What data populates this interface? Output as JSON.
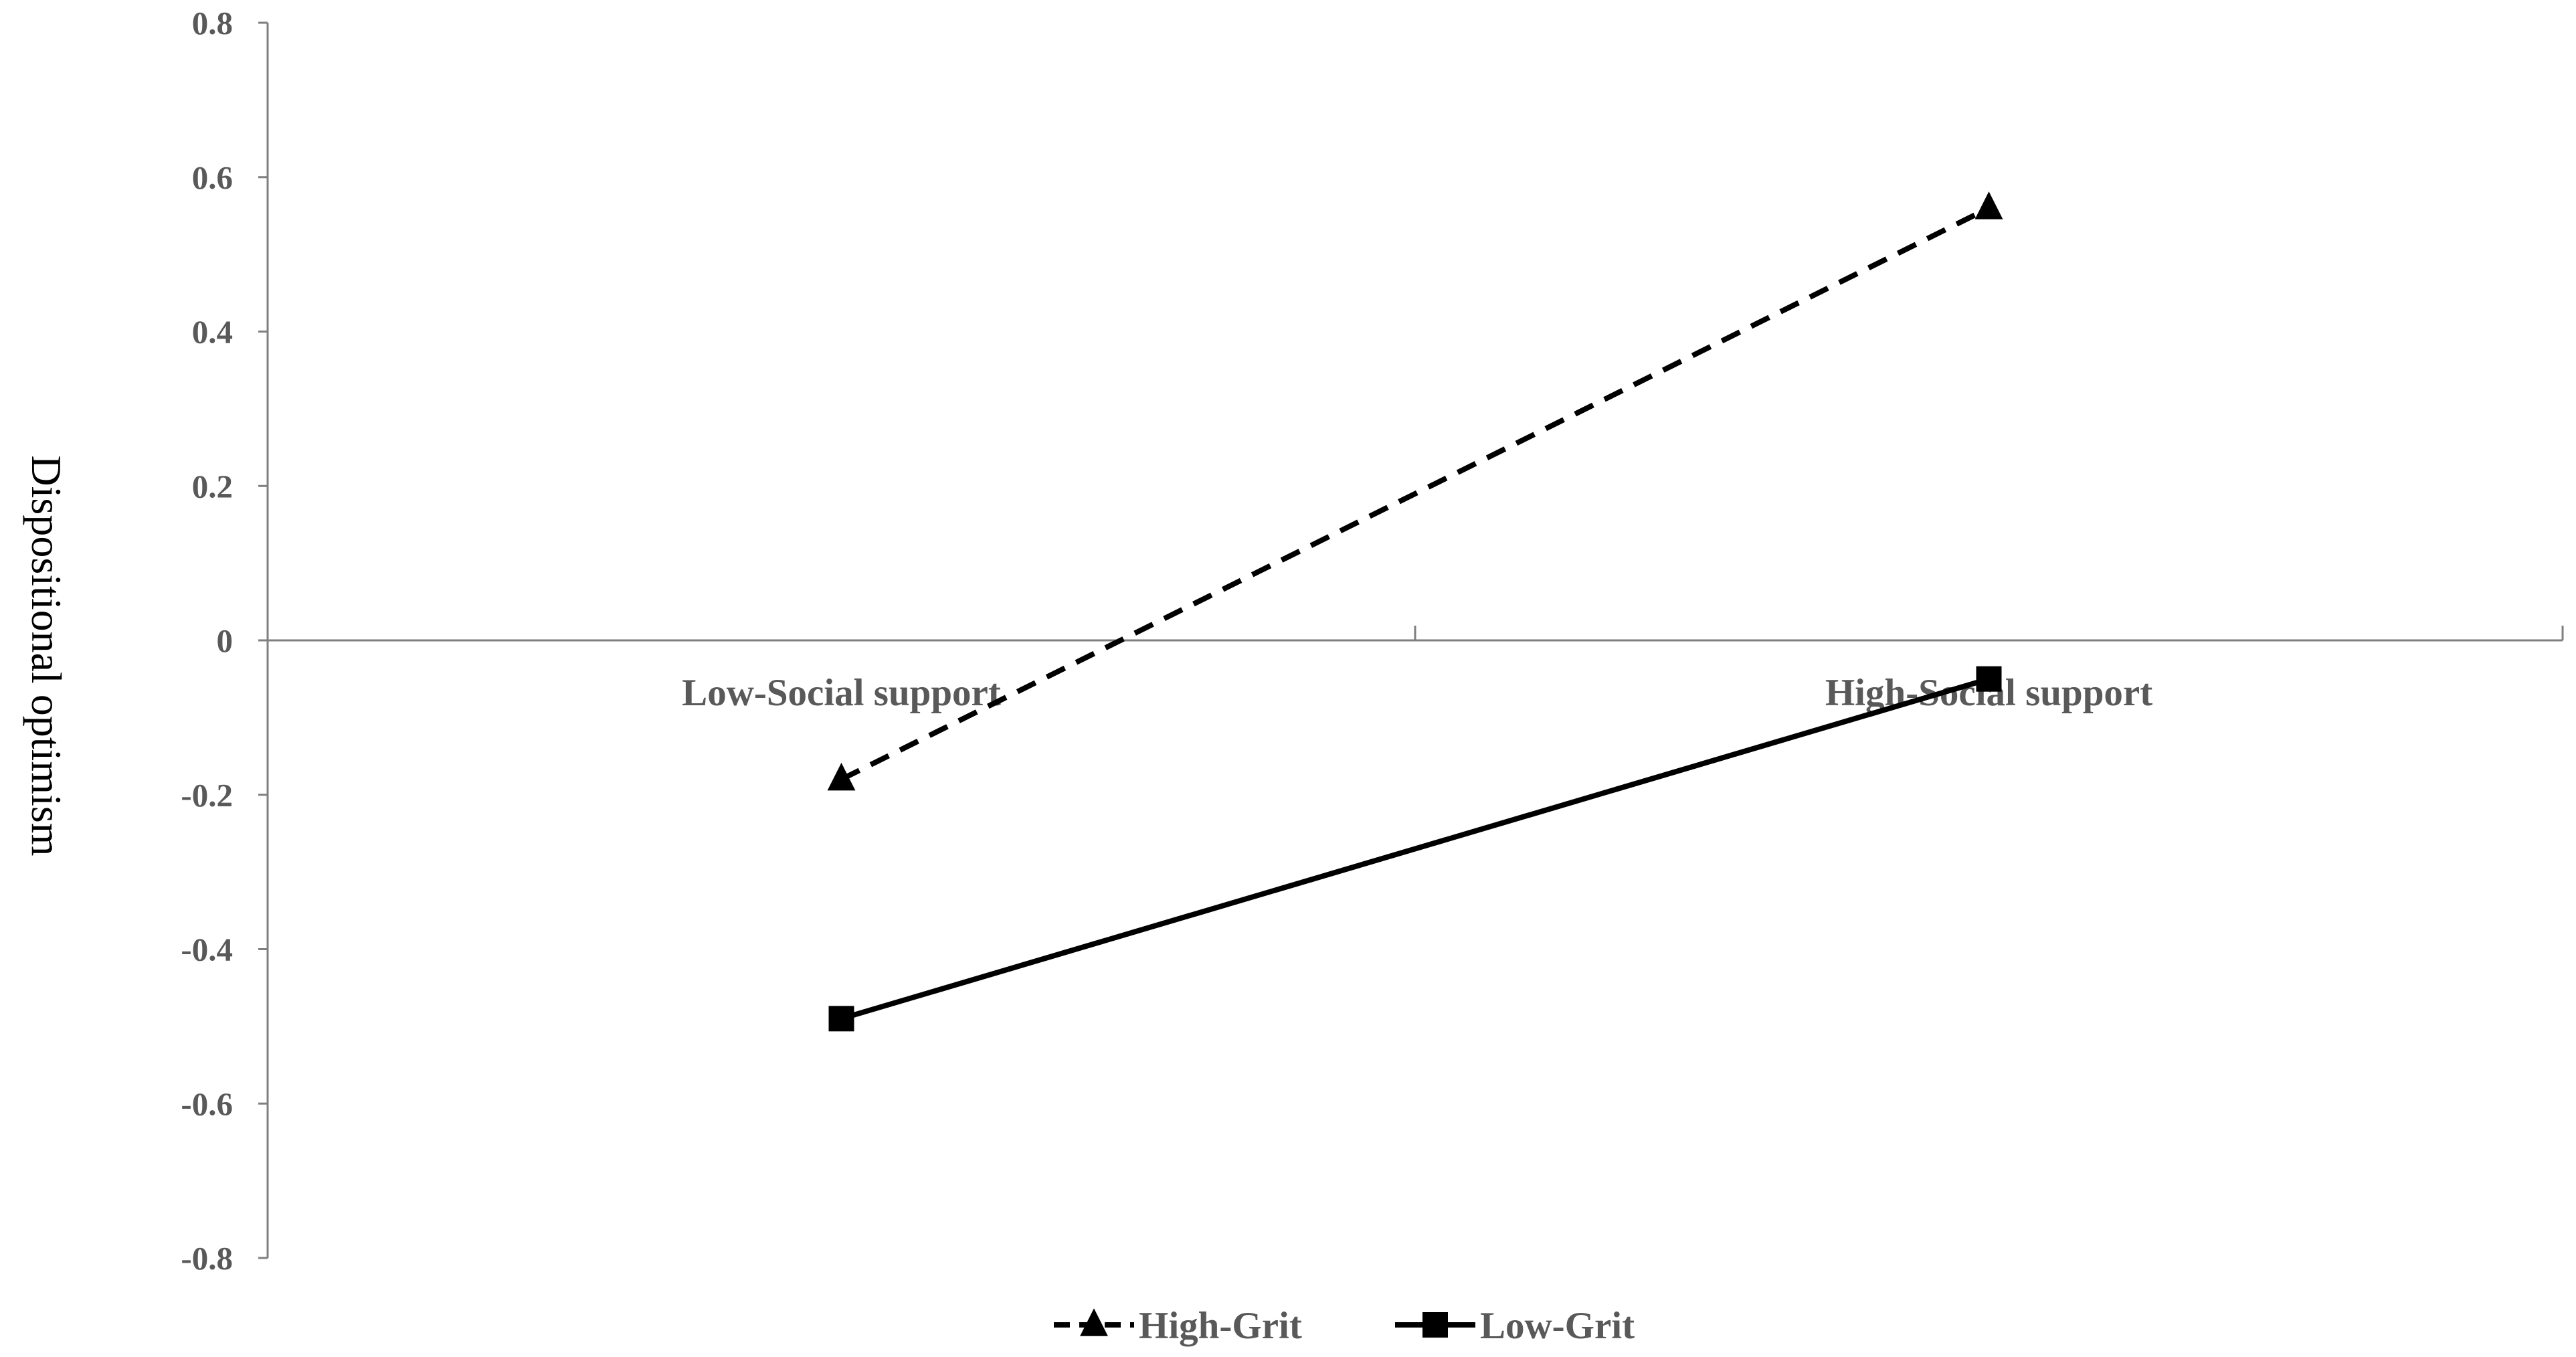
{
  "chart_data": {
    "type": "line",
    "title": "",
    "xlabel": "",
    "ylabel": "Dispositional optimism",
    "categories": [
      "Low-Social support",
      "High-Social support"
    ],
    "ylim": [
      -0.8,
      0.8
    ],
    "yticks": [
      "0.8",
      "0.6",
      "0.4",
      "0.2",
      "0",
      "-0.2",
      "-0.4",
      "-0.6",
      "-0.8"
    ],
    "grid": false,
    "legend_position": "bottom",
    "series": [
      {
        "name": "High-Grit",
        "values": [
          -0.18,
          0.56
        ],
        "line_style": "dashed",
        "marker": "triangle",
        "color": "#000000"
      },
      {
        "name": "Low-Grit",
        "values": [
          -0.49,
          -0.05
        ],
        "line_style": "solid",
        "marker": "square",
        "color": "#000000"
      }
    ]
  }
}
